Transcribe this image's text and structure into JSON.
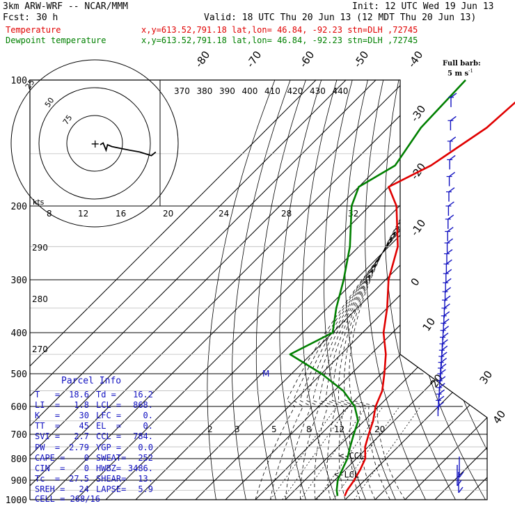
{
  "header": {
    "model": "3km ARW-WRF -- NCAR/MMM",
    "init": "Init: 12 UTC Wed 19 Jun 13",
    "fcst_label": "Fcst:",
    "fcst_value": "30 h",
    "valid": "Valid: 18 UTC Thu 20 Jun 13 (12 MDT Thu 20 Jun 13)",
    "temp_label": "Temperature",
    "dew_label": "Dewpoint temperature",
    "loc_line": "x,y=613.52,791.18  lat,lon= 46.84, -92.23  stn=DLH ,72745"
  },
  "colors": {
    "temperature": "#e00000",
    "dewpoint": "#008000",
    "axes": "#000000",
    "parcel_title": "#1010c0",
    "barbs": "#1010c0"
  },
  "chart_data": {
    "type": "skew-t",
    "pressure_ticks": [
      100,
      200,
      300,
      400,
      500,
      600,
      700,
      800,
      900,
      1000
    ],
    "temp_isotherm_labels": [
      "-80",
      "-70",
      "-60",
      "-50",
      "-40",
      "-30",
      "-20",
      "-10",
      "0",
      "10",
      "20",
      "30",
      "40"
    ],
    "theta_labels": [
      "370",
      "380",
      "390",
      "400",
      "410",
      "420",
      "430",
      "440"
    ],
    "theta_e_labels": [
      "290",
      "280",
      "270"
    ],
    "mixing_ratio_labels": [
      "2",
      "3",
      "5",
      "8",
      "12",
      "20"
    ],
    "hodo_speed_labels": [
      "8",
      "12",
      "16",
      "20",
      "24",
      "28",
      "32"
    ],
    "hodo_ring_labels": [
      "75",
      "50",
      "25"
    ],
    "hodo_units": "kts",
    "wind_key": {
      "title": "Full barb:",
      "value": "5 m s",
      "exp": "-1"
    },
    "level_markers": {
      "m": "M",
      "ccl": "<-CCL",
      "lcl": "<-LCL"
    },
    "temperature_profile": [
      {
        "p": 100,
        "t": -55
      },
      {
        "p": 130,
        "t": -57
      },
      {
        "p": 160,
        "t": -63
      },
      {
        "p": 180,
        "t": -70
      },
      {
        "p": 200,
        "t": -61
      },
      {
        "p": 250,
        "t": -47
      },
      {
        "p": 300,
        "t": -39
      },
      {
        "p": 350,
        "t": -30
      },
      {
        "p": 400,
        "t": -23
      },
      {
        "p": 450,
        "t": -15
      },
      {
        "p": 500,
        "t": -9
      },
      {
        "p": 550,
        "t": -4
      },
      {
        "p": 600,
        "t": -1
      },
      {
        "p": 650,
        "t": 3
      },
      {
        "p": 700,
        "t": 6
      },
      {
        "p": 750,
        "t": 9
      },
      {
        "p": 800,
        "t": 13
      },
      {
        "p": 850,
        "t": 15
      },
      {
        "p": 900,
        "t": 16.5
      },
      {
        "p": 950,
        "t": 17.5
      },
      {
        "p": 980,
        "t": 18.6
      }
    ],
    "dewpoint_profile": [
      {
        "p": 100,
        "t": -80
      },
      {
        "p": 130,
        "t": -79
      },
      {
        "p": 160,
        "t": -75
      },
      {
        "p": 180,
        "t": -80
      },
      {
        "p": 200,
        "t": -76
      },
      {
        "p": 250,
        "t": -63
      },
      {
        "p": 300,
        "t": -54
      },
      {
        "p": 350,
        "t": -47
      },
      {
        "p": 400,
        "t": -40
      },
      {
        "p": 450,
        "t": -47
      },
      {
        "p": 500,
        "t": -30
      },
      {
        "p": 550,
        "t": -17
      },
      {
        "p": 600,
        "t": -8
      },
      {
        "p": 650,
        "t": -2
      },
      {
        "p": 700,
        "t": 1
      },
      {
        "p": 750,
        "t": 4
      },
      {
        "p": 800,
        "t": 7
      },
      {
        "p": 850,
        "t": 9
      },
      {
        "p": 900,
        "t": 11
      },
      {
        "p": 950,
        "t": 14
      },
      {
        "p": 980,
        "t": 16.2
      }
    ],
    "hodograph_uv_kts": [
      [
        0,
        0
      ],
      [
        2,
        1
      ],
      [
        3,
        -1
      ],
      [
        4,
        -3
      ],
      [
        5,
        0
      ],
      [
        8,
        -1
      ],
      [
        14,
        -2
      ],
      [
        20,
        -3
      ],
      [
        27,
        -4
      ],
      [
        31,
        -5
      ],
      [
        35,
        -6
      ],
      [
        38,
        -4
      ]
    ],
    "wind_barb_pressures": [
      110,
      125,
      140,
      155,
      170,
      185,
      200,
      215,
      230,
      245,
      260,
      275,
      290,
      305,
      320,
      335,
      350,
      365,
      380,
      395,
      410,
      425,
      440,
      455,
      470,
      485,
      500,
      520,
      540,
      560,
      580,
      600
    ]
  },
  "parcel": {
    "title": "Parcel Info",
    "rows": [
      [
        "T   =",
        "18.6",
        "Td =",
        "16.2"
      ],
      [
        "LI  =",
        "1.8",
        "LCL =",
        "868."
      ],
      [
        "K   =",
        "30",
        "LFC =",
        "0."
      ],
      [
        "TT  =",
        "45",
        "EL  =",
        "0."
      ],
      [
        "SVI =",
        "2.7",
        "CCL =",
        "784."
      ],
      [
        "PW  =",
        "2.79",
        "YGP =",
        "0.0"
      ],
      [
        "CAPE =",
        "0",
        "SWEAT=",
        "252"
      ],
      [
        "CIN  =",
        "0",
        "HWBZ=",
        "3486."
      ],
      [
        "Tc  =",
        "27.5",
        "SHEAR=",
        "13."
      ],
      [
        "SREH =",
        "24",
        "LAPSE=",
        "5.9"
      ]
    ],
    "cell": "CELL = 268/16"
  }
}
